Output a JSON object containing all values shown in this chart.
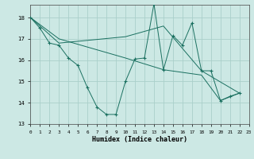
{
  "xlabel": "Humidex (Indice chaleur)",
  "background_color": "#cce8e4",
  "grid_color": "#aacfca",
  "line_color": "#1a7060",
  "xlim": [
    0,
    23
  ],
  "ylim": [
    13,
    18.6
  ],
  "yticks": [
    13,
    14,
    15,
    16,
    17,
    18
  ],
  "xticks": [
    0,
    1,
    2,
    3,
    4,
    5,
    6,
    7,
    8,
    9,
    10,
    11,
    12,
    13,
    14,
    15,
    16,
    17,
    18,
    19,
    20,
    21,
    22,
    23
  ],
  "series1": [
    [
      0,
      18.0
    ],
    [
      1,
      17.5
    ],
    [
      2,
      16.8
    ],
    [
      3,
      16.7
    ],
    [
      4,
      16.1
    ],
    [
      5,
      15.75
    ],
    [
      6,
      14.7
    ],
    [
      7,
      13.8
    ],
    [
      8,
      13.45
    ],
    [
      9,
      13.45
    ],
    [
      10,
      15.0
    ],
    [
      11,
      16.05
    ],
    [
      12,
      16.1
    ],
    [
      13,
      18.65
    ],
    [
      14,
      15.55
    ],
    [
      15,
      17.15
    ],
    [
      16,
      16.7
    ],
    [
      17,
      17.75
    ],
    [
      18,
      15.5
    ],
    [
      19,
      15.5
    ],
    [
      20,
      14.1
    ],
    [
      21,
      14.3
    ],
    [
      22,
      14.45
    ]
  ],
  "series2": [
    [
      0,
      18.0
    ],
    [
      3,
      16.8
    ],
    [
      10,
      17.1
    ],
    [
      14,
      17.6
    ],
    [
      18,
      15.5
    ],
    [
      22,
      14.45
    ]
  ],
  "series3": [
    [
      0,
      18.0
    ],
    [
      3,
      17.0
    ],
    [
      10,
      16.1
    ],
    [
      14,
      15.55
    ],
    [
      18,
      15.3
    ],
    [
      20,
      14.1
    ],
    [
      22,
      14.45
    ]
  ]
}
